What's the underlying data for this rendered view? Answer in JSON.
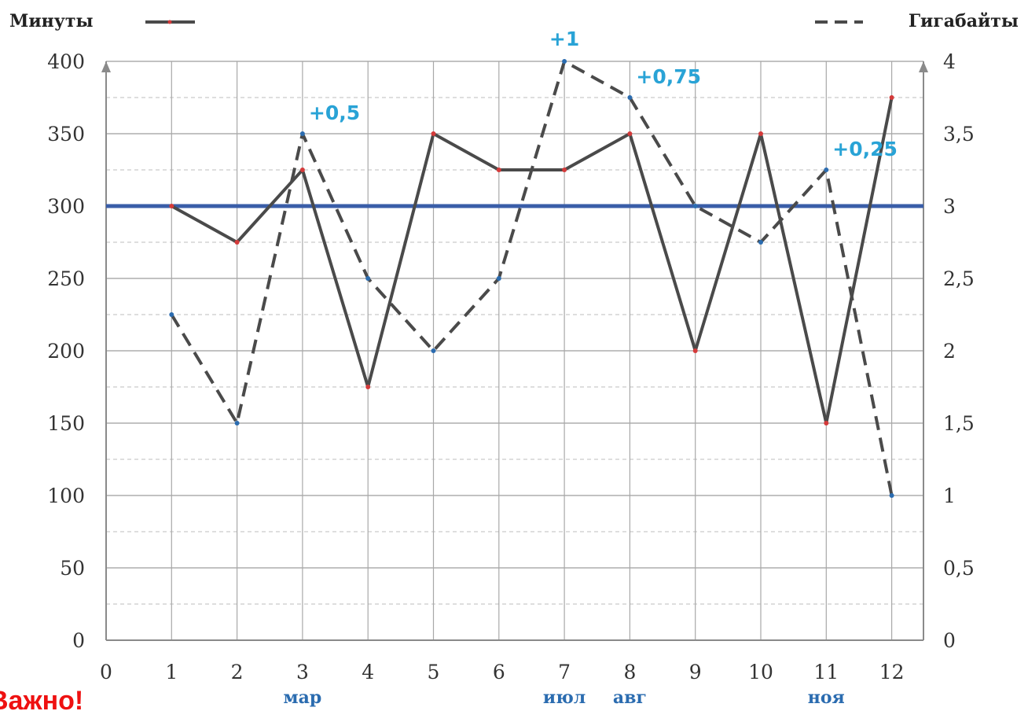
{
  "chart_data": {
    "type": "line",
    "legend": {
      "left_label": "Минуты",
      "right_label": "Гигабайты",
      "placement": "top"
    },
    "x": [
      1,
      2,
      3,
      4,
      5,
      6,
      7,
      8,
      9,
      10,
      11,
      12
    ],
    "x_ticks": [
      "0",
      "1",
      "2",
      "3",
      "4",
      "5",
      "6",
      "7",
      "8",
      "9",
      "10",
      "11",
      "12"
    ],
    "xlim": [
      0,
      12.5
    ],
    "y_left_ticks": [
      "0",
      "50",
      "100",
      "150",
      "200",
      "250",
      "300",
      "350",
      "400"
    ],
    "y_right_ticks": [
      "0",
      "0,5",
      "1",
      "1,5",
      "2",
      "2,5",
      "3",
      "3,5",
      "4"
    ],
    "ylim_left": [
      0,
      400
    ],
    "ylim_right": [
      0,
      4
    ],
    "grid": true,
    "series": [
      {
        "name": "Минуты",
        "axis": "left",
        "style": "solid",
        "color": "#4a4a4a",
        "marker_color": "#d43a3a",
        "values": [
          300,
          275,
          325,
          175,
          350,
          325,
          325,
          350,
          200,
          350,
          150,
          375
        ]
      },
      {
        "name": "Гигабайты",
        "axis": "right",
        "style": "dashed",
        "color": "#4a4a4a",
        "marker_color": "#2b6cb0",
        "values": [
          2.25,
          1.5,
          3.5,
          2.5,
          2,
          2.5,
          4,
          3.75,
          3,
          2.75,
          3.25,
          1
        ]
      }
    ],
    "reference_line": {
      "value": 300,
      "axis": "left",
      "color": "#3a5ea8"
    },
    "month_labels": [
      {
        "x": 3,
        "text": "мар"
      },
      {
        "x": 7,
        "text": "июл"
      },
      {
        "x": 8,
        "text": "авг"
      },
      {
        "x": 11,
        "text": "ноя"
      }
    ],
    "annotations": [
      {
        "x": 3,
        "y": 3.5,
        "text": "+0,5"
      },
      {
        "x": 7,
        "y": 4,
        "text": "+1"
      },
      {
        "x": 8,
        "y": 3.75,
        "text": "+0,75"
      },
      {
        "x": 11,
        "y": 3.25,
        "text": "+0,25"
      }
    ]
  },
  "corner_text": "Важно!"
}
